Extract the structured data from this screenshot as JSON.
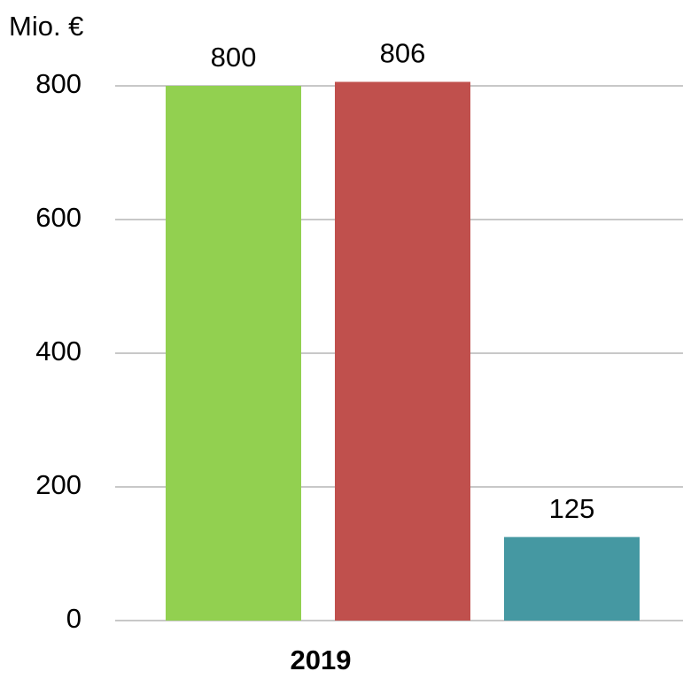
{
  "chart_data": {
    "type": "bar",
    "y_label": "Mio. €",
    "categories": [
      "2019"
    ],
    "series": [
      {
        "color": "#92d050",
        "values": [
          800
        ]
      },
      {
        "color": "#c0504d",
        "values": [
          806
        ]
      },
      {
        "color": "#4598a2",
        "values": [
          125
        ]
      }
    ],
    "ylim": [
      0,
      800
    ],
    "yticks": [
      0,
      200,
      400,
      600,
      800
    ],
    "grid": true
  }
}
